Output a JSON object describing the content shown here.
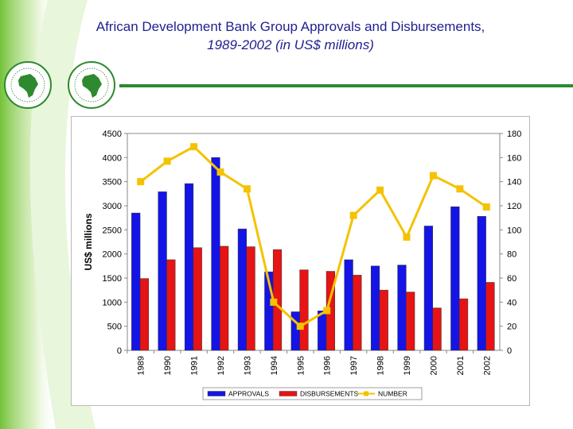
{
  "slide": {
    "title_line1": "African Development Bank Group Approvals and Disbursements,",
    "title_line2": "1989-2002 (in US$ millions)"
  },
  "colors": {
    "title": "#1f1f8f",
    "approvals": "#1414e6",
    "disbursements": "#e61414",
    "number": "#f5c200",
    "accent_green": "#2e8a2e"
  },
  "icons": [
    "afdb-logo-icon",
    "adf-logo-icon"
  ],
  "chart_data": {
    "type": "bar",
    "categories": [
      "1989",
      "1990",
      "1991",
      "1992",
      "1993",
      "1994",
      "1995",
      "1996",
      "1997",
      "1998",
      "1999",
      "2000",
      "2001",
      "2002"
    ],
    "series": [
      {
        "name": "APPROVALS",
        "type": "bar",
        "axis": "left",
        "values": [
          2850,
          3290,
          3460,
          4000,
          2520,
          1630,
          800,
          820,
          1880,
          1750,
          1770,
          2580,
          2980,
          2780
        ]
      },
      {
        "name": "DISBURSEMENTS",
        "type": "bar",
        "axis": "left",
        "values": [
          1490,
          1880,
          2130,
          2160,
          2150,
          2090,
          1670,
          1640,
          1560,
          1250,
          1210,
          880,
          1070,
          1410
        ]
      },
      {
        "name": "NUMBER",
        "type": "line",
        "axis": "right",
        "values": [
          140,
          157,
          169,
          148,
          134,
          40,
          20,
          33,
          112,
          133,
          94,
          145,
          134,
          119
        ]
      }
    ],
    "ylabel": "US$ millions",
    "ylim": [
      0,
      4500
    ],
    "yticks": [
      "0",
      "500",
      "1000",
      "1500",
      "2000",
      "2500",
      "3000",
      "3500",
      "4000",
      "4500"
    ],
    "y2lim": [
      0,
      180
    ],
    "y2ticks": [
      "0",
      "20",
      "40",
      "60",
      "80",
      "100",
      "120",
      "140",
      "160",
      "180"
    ],
    "grid": false,
    "legend": "bottom"
  }
}
